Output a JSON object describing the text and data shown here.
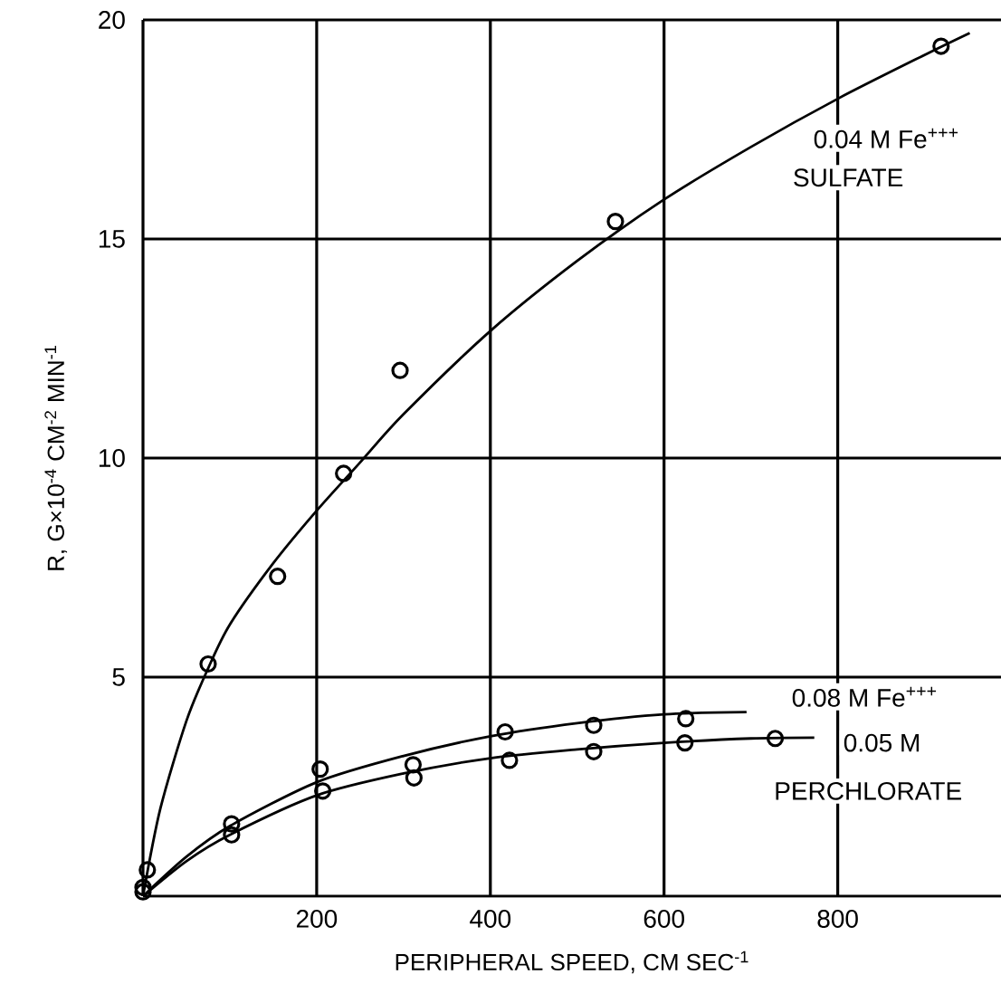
{
  "chart_data": {
    "type": "scatter",
    "xlabel": "PERIPHERAL SPEED, CM SEC$^{-1}$",
    "ylabel": "R, G×10$^{-4}$ CM$^{-2}$ MIN$^{-1}$",
    "xlim": [
      0,
      988
    ],
    "ylim": [
      0,
      20
    ],
    "xticks": [
      200,
      400,
      600,
      800
    ],
    "yticks": [
      5,
      10,
      15,
      20
    ],
    "grid": true,
    "marker": "circle",
    "series": [
      {
        "color": "#000000",
        "x": [
          5,
          75,
          155,
          231,
          296,
          544,
          919
        ],
        "values": [
          0.6,
          5.3,
          7.3,
          9.65,
          12.0,
          15.4,
          19.4
        ]
      },
      {
        "color": "#000000",
        "x": [
          0,
          102,
          204,
          311,
          417,
          519,
          625
        ],
        "values": [
          0.2,
          1.65,
          2.9,
          3.0,
          3.75,
          3.9,
          4.05
        ]
      },
      {
        "color": "#000000",
        "x": [
          0,
          102,
          207,
          312,
          422,
          519,
          624,
          728
        ],
        "values": [
          0.1,
          1.4,
          2.4,
          2.7,
          3.1,
          3.3,
          3.5,
          3.6
        ]
      },
      {
        "type": "line",
        "marker": "none",
        "color": "#000000",
        "x": [
          0,
          20,
          50,
          75,
          100,
          150,
          200,
          250,
          300,
          400,
          500,
          600,
          700,
          800,
          900,
          952
        ],
        "values": [
          0,
          2.0,
          4.0,
          5.2,
          6.2,
          7.6,
          8.8,
          9.9,
          11.0,
          12.9,
          14.5,
          15.9,
          17.1,
          18.2,
          19.2,
          19.7
        ]
      },
      {
        "type": "line",
        "marker": "none",
        "color": "#000000",
        "x": [
          0,
          50,
          100,
          200,
          300,
          400,
          500,
          600,
          695
        ],
        "values": [
          0,
          0.9,
          1.6,
          2.6,
          3.2,
          3.65,
          3.95,
          4.15,
          4.2
        ]
      },
      {
        "type": "line",
        "marker": "none",
        "color": "#000000",
        "x": [
          0,
          50,
          100,
          200,
          300,
          400,
          500,
          600,
          700,
          773
        ],
        "values": [
          0,
          0.8,
          1.4,
          2.3,
          2.8,
          3.15,
          3.35,
          3.5,
          3.6,
          3.62
        ]
      }
    ],
    "annotations": [
      "0.04 M Fe$^{+++}$",
      "SULFATE",
      "0.08 M Fe$^{+++}$",
      "0.05 M",
      "PERCHLORATE"
    ]
  }
}
